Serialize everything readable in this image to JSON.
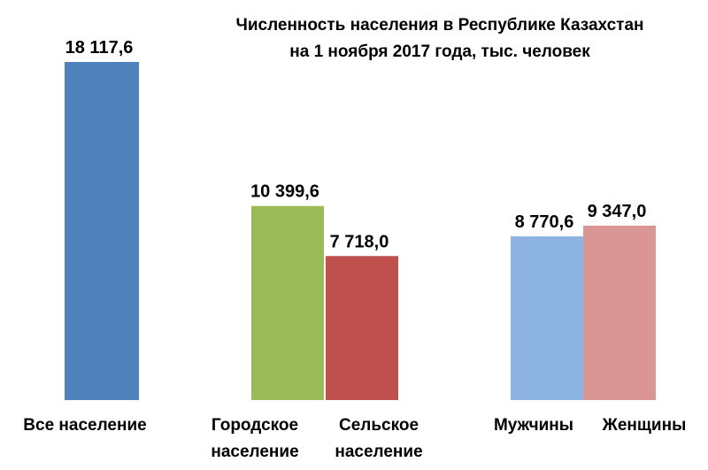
{
  "chart_data": {
    "type": "bar",
    "title_lines": [
      "Численность населения  в Республике  Казахстан",
      "на 1 ноября 2017 года, тыс. человек"
    ],
    "categories": [
      [
        "Все население"
      ],
      [
        "Городское",
        "население"
      ],
      [
        "Сельское",
        "население"
      ],
      [
        "Мужчины"
      ],
      [
        "Женщины"
      ]
    ],
    "values": [
      18117.6,
      10399.6,
      7718.0,
      8770.6,
      9347.0
    ],
    "value_labels": [
      "18 117,6",
      "10 399,6",
      "7 718,0",
      "8 770,6",
      "9 347,0"
    ],
    "colors": [
      "#4f81bd",
      "#9bbb59",
      "#c0504d",
      "#8db3e2",
      "#d99694"
    ],
    "ylim": [
      0,
      18117.6
    ],
    "grid": false,
    "legend": "none"
  }
}
